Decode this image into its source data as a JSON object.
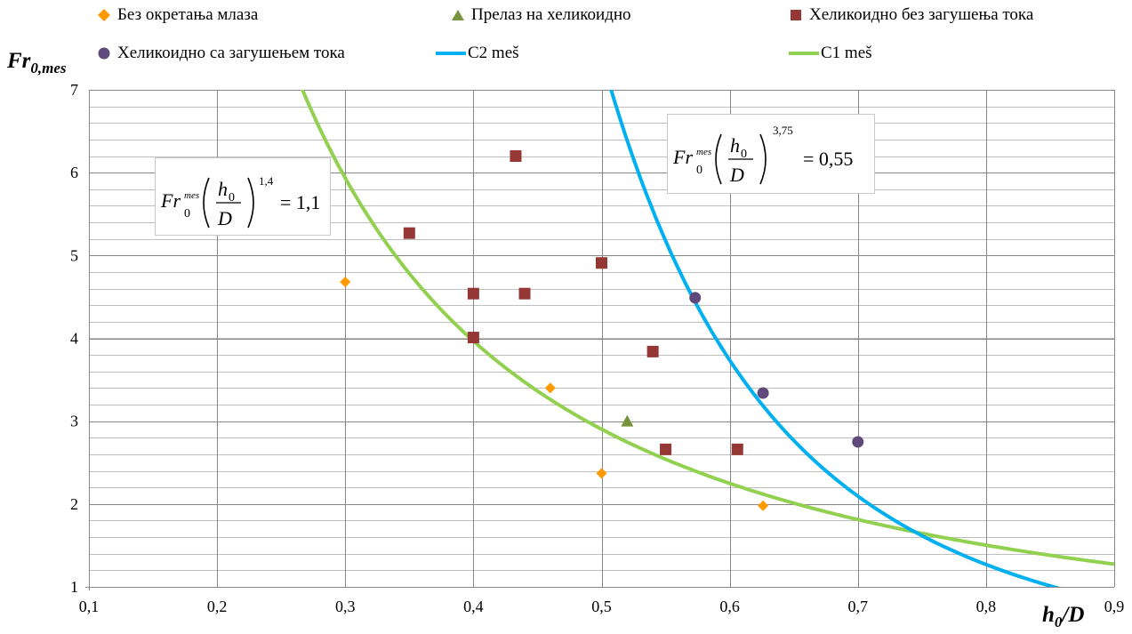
{
  "chart_data": {
    "type": "scatter",
    "xlabel": "h0/D",
    "ylabel": "Fr0,mes",
    "xlim": [
      0.1,
      0.9
    ],
    "ylim": [
      1,
      7
    ],
    "x_ticks": [
      "0,1",
      "0,2",
      "0,3",
      "0,4",
      "0,5",
      "0,6",
      "0,7",
      "0,8",
      "0,9"
    ],
    "y_ticks": [
      "1",
      "2",
      "3",
      "4",
      "5",
      "6",
      "7"
    ],
    "grid": true,
    "legend_position": "top",
    "series": [
      {
        "name": "Без окретања млаза",
        "marker": "diamond",
        "color": "#ff9900",
        "points": [
          [
            0.3,
            4.68
          ],
          [
            0.46,
            3.4
          ],
          [
            0.5,
            2.37
          ],
          [
            0.626,
            1.98
          ]
        ]
      },
      {
        "name": "Прелаз на хеликоидно",
        "marker": "triangle",
        "color": "#77933c",
        "points": [
          [
            0.52,
            3.0
          ]
        ]
      },
      {
        "name": "Хеликоидно без загушења тока",
        "marker": "square",
        "color": "#953735",
        "points": [
          [
            0.35,
            5.27
          ],
          [
            0.4,
            4.54
          ],
          [
            0.4,
            4.01
          ],
          [
            0.433,
            6.2
          ],
          [
            0.44,
            4.54
          ],
          [
            0.5,
            4.91
          ],
          [
            0.54,
            3.84
          ],
          [
            0.55,
            2.66
          ],
          [
            0.606,
            2.66
          ]
        ]
      },
      {
        "name": "Хеликоидно са загушењем тока",
        "marker": "circle",
        "color": "#604a7b",
        "points": [
          [
            0.573,
            4.49
          ],
          [
            0.626,
            3.34
          ],
          [
            0.7,
            2.75
          ]
        ]
      },
      {
        "name": "C2 meš",
        "type": "line",
        "color": "#00b0f0",
        "equation": "Fr0 = 0.55 * (h0/D)^-3.75"
      },
      {
        "name": "C1 meš",
        "type": "line",
        "color": "#92d050",
        "equation": "Fr0 = 1.1 * (h0/D)^-1.4"
      }
    ],
    "annotations": [
      {
        "id": "c1",
        "base": "Fr",
        "sub": "0",
        "sup": "mes",
        "num": "h",
        "num_sub": "0",
        "den": "D",
        "exp": "1,4",
        "rhs": "= 1,1"
      },
      {
        "id": "c2",
        "base": "Fr",
        "sub": "0",
        "sup": "mes",
        "num": "h",
        "num_sub": "0",
        "den": "D",
        "exp": "3,75",
        "rhs": "= 0,55"
      }
    ]
  }
}
